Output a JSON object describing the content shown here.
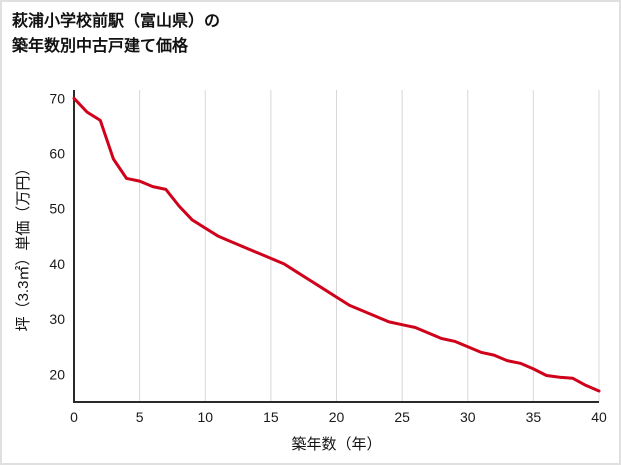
{
  "title": {
    "line1": "萩浦小学校前駅（富山県）の",
    "line2": "築年数別中古戸建て価格"
  },
  "chart_data": {
    "type": "line",
    "title": "萩浦小学校前駅（富山県）の築年数別中古戸建て価格",
    "xlabel": "築年数（年）",
    "ylabel": "坪（3.3㎡）単価（万円）",
    "x": [
      0,
      1,
      2,
      3,
      4,
      5,
      6,
      7,
      8,
      9,
      10,
      11,
      12,
      13,
      14,
      15,
      16,
      17,
      18,
      19,
      20,
      21,
      22,
      23,
      24,
      25,
      26,
      27,
      28,
      29,
      30,
      31,
      32,
      33,
      34,
      35,
      36,
      37,
      38,
      39,
      40
    ],
    "values": [
      70,
      67.5,
      66,
      59,
      55.5,
      55,
      54,
      53.5,
      50.5,
      48,
      46.5,
      45,
      44,
      43,
      42,
      41,
      40,
      38.5,
      37,
      35.5,
      34,
      32.5,
      31.5,
      30.5,
      29.5,
      29,
      28.5,
      27.5,
      26.5,
      26,
      25,
      24,
      23.5,
      22.5,
      22,
      21,
      19.8,
      19.5,
      19.3,
      18,
      17
    ],
    "xlim": [
      0,
      40
    ],
    "ylim": [
      15,
      71.5
    ],
    "xticks": [
      0,
      5,
      10,
      15,
      20,
      25,
      30,
      35,
      40
    ],
    "yticks": [
      20,
      30,
      40,
      50,
      60,
      70
    ],
    "grid": "vertical-only",
    "legend": "none",
    "line_color": "#d0021b",
    "axis_color": "#2a2a2a",
    "grid_color": "#d8d8d8"
  }
}
